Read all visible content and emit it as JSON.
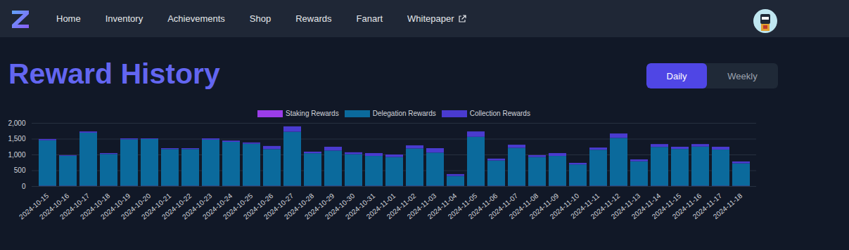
{
  "nav": {
    "links": [
      "Home",
      "Inventory",
      "Achievements",
      "Shop",
      "Rewards",
      "Fanart",
      "Whitepaper"
    ]
  },
  "header": {
    "title": "Reward History",
    "toggle": {
      "options": [
        "Daily",
        "Weekly"
      ],
      "active": "Daily"
    }
  },
  "chart_data": {
    "type": "bar",
    "stacked": true,
    "legend": "top",
    "grid": true,
    "categories": [
      "2024-10-15",
      "2024-10-16",
      "2024-10-17",
      "2024-10-18",
      "2024-10-19",
      "2024-10-20",
      "2024-10-21",
      "2024-10-22",
      "2024-10-23",
      "2024-10-24",
      "2024-10-25",
      "2024-10-26",
      "2024-10-27",
      "2024-10-28",
      "2024-10-29",
      "2024-10-30",
      "2024-10-31",
      "2024-11-01",
      "2024-11-02",
      "2024-11-03",
      "2024-11-04",
      "2024-11-05",
      "2024-11-06",
      "2024-11-07",
      "2024-11-08",
      "2024-11-09",
      "2024-11-10",
      "2024-11-11",
      "2024-11-12",
      "2024-11-13",
      "2024-11-14",
      "2024-11-15",
      "2024-11-16",
      "2024-11-17",
      "2024-11-18"
    ],
    "series": [
      {
        "name": "Staking Rewards",
        "color": "#9b3de8",
        "values": [
          10,
          10,
          10,
          10,
          10,
          10,
          10,
          10,
          10,
          10,
          10,
          10,
          10,
          10,
          10,
          10,
          10,
          10,
          10,
          10,
          10,
          10,
          10,
          10,
          10,
          10,
          10,
          10,
          10,
          10,
          10,
          10,
          10,
          10,
          10
        ]
      },
      {
        "name": "Delegation Rewards",
        "color": "#0b6a9c",
        "values": [
          1440,
          950,
          1680,
          1005,
          1470,
          1480,
          1160,
          1160,
          1460,
          1390,
          1330,
          1160,
          1710,
          1030,
          1115,
          1000,
          945,
          910,
          1180,
          1050,
          310,
          1550,
          800,
          1200,
          910,
          945,
          675,
          1140,
          1515,
          775,
          1230,
          1165,
          1240,
          1145,
          710
        ]
      },
      {
        "name": "Collection Rewards",
        "color": "#4a3bcf",
        "values": [
          40,
          20,
          40,
          30,
          30,
          20,
          30,
          30,
          40,
          40,
          40,
          100,
          170,
          50,
          120,
          60,
          90,
          80,
          100,
          140,
          60,
          170,
          60,
          100,
          60,
          90,
          50,
          70,
          140,
          60,
          90,
          70,
          80,
          90,
          60
        ]
      }
    ],
    "ylim": [
      0,
      2000
    ],
    "yticks": [
      0,
      500,
      {
        "value": 1000,
        "label": "1,000"
      },
      {
        "value": 1500,
        "label": "1,500"
      },
      {
        "value": 2000,
        "label": "2,000"
      }
    ]
  }
}
